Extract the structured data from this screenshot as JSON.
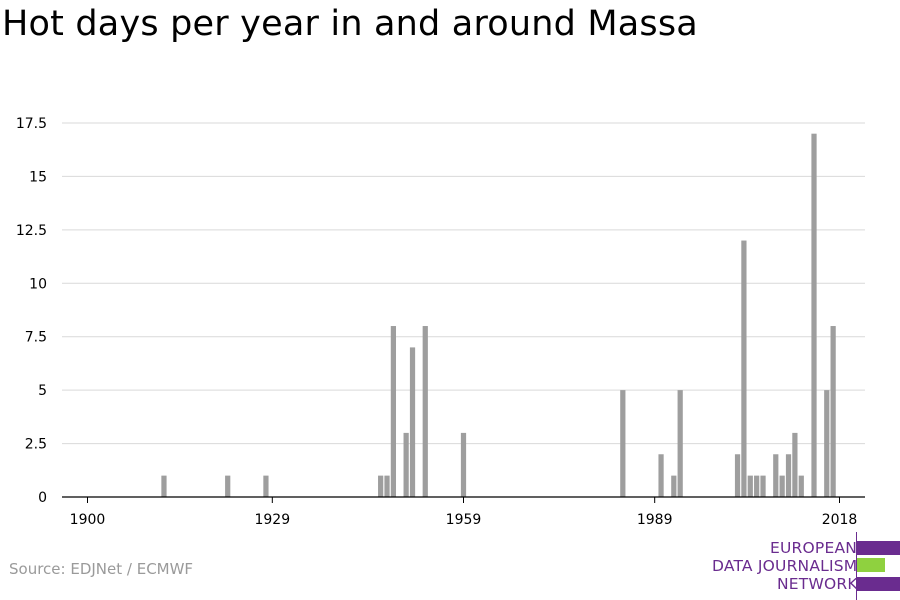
{
  "title": "Hot days per year in and around Massa",
  "source": "Source: EDJNet / ECMWF",
  "logo": {
    "line1": "EUROPEAN",
    "line2": "DATA JOURNALISM",
    "line3": "NETWORK"
  },
  "colors": {
    "bar": "#9e9e9e",
    "grid": "#d9d9d9",
    "axis": "#000000",
    "logo_purple": "#6a2c8f",
    "logo_green": "#8fd13f"
  },
  "chart_data": {
    "type": "bar",
    "title": "Hot days per year in and around Massa",
    "xlabel": "",
    "ylabel": "",
    "xlim": [
      1896,
      2022
    ],
    "ylim": [
      0,
      17.5
    ],
    "x_ticks": [
      1900,
      1929,
      1959,
      1989,
      2018
    ],
    "y_ticks": [
      0,
      2.5,
      5,
      7.5,
      10,
      12.5,
      15,
      17.5
    ],
    "y_tick_labels": [
      "0",
      "2.5",
      "5",
      "7.5",
      "10",
      "12.5",
      "15",
      "17.5"
    ],
    "grid": true,
    "series": [
      {
        "x": [
          1912,
          1922,
          1928,
          1946,
          1947,
          1948,
          1950,
          1951,
          1953,
          1959,
          1984,
          1990,
          1992,
          1993,
          2002,
          2003,
          2004,
          2005,
          2006,
          2008,
          2009,
          2010,
          2011,
          2012,
          2014,
          2016,
          2017
        ],
        "values": [
          1,
          1,
          1,
          1,
          1,
          8,
          3,
          7,
          8,
          3,
          5,
          2,
          1,
          5,
          2,
          12,
          1,
          1,
          1,
          2,
          1,
          2,
          3,
          1,
          17,
          5,
          8
        ]
      }
    ]
  }
}
